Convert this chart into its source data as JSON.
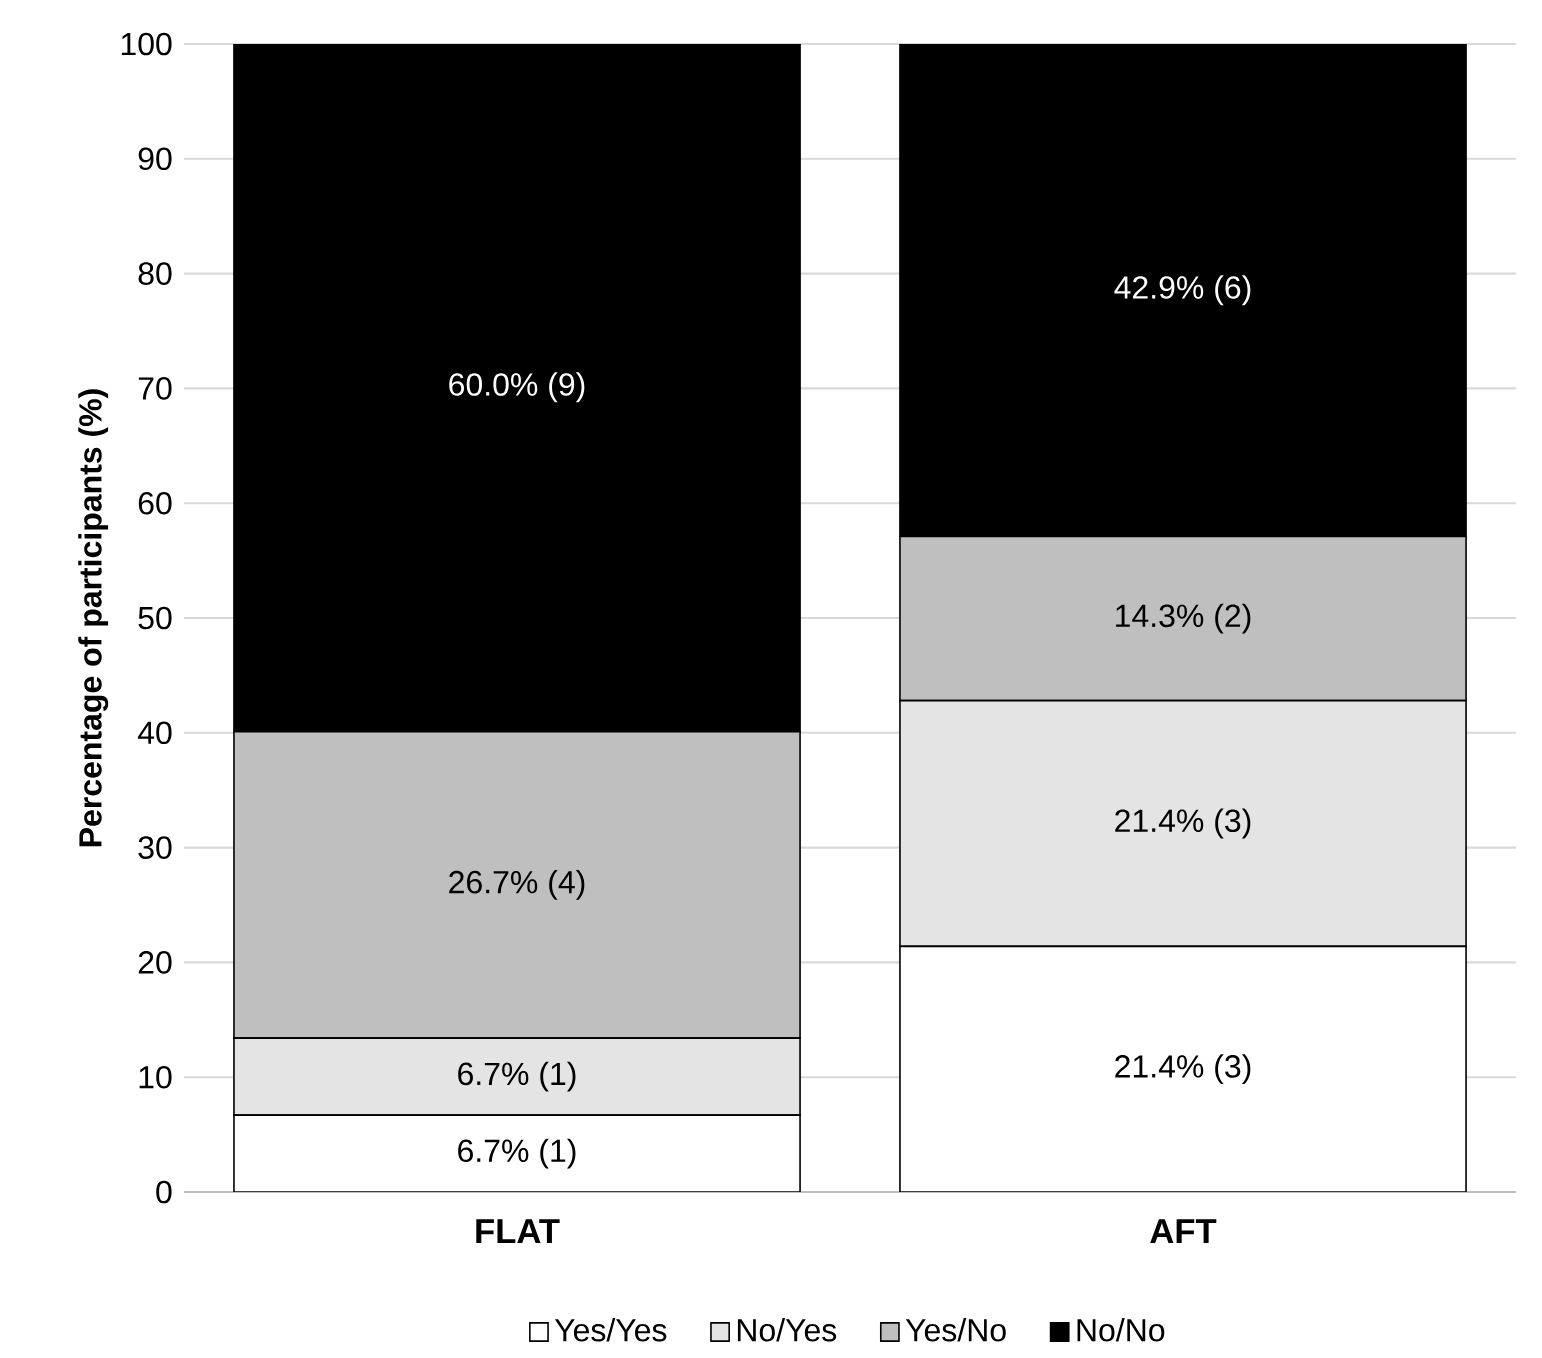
{
  "chart_data": {
    "type": "bar",
    "stacked": true,
    "ylabel": "Percentage of participants (%)",
    "categories": [
      "FLAT",
      "AFT"
    ],
    "series": [
      {
        "name": "Yes/Yes",
        "color": "#ffffff",
        "values": [
          6.7,
          21.4
        ],
        "value_labels": [
          "6.7% (1)",
          "21.4% (3)"
        ]
      },
      {
        "name": "No/Yes",
        "color": "#e4e4e4",
        "values": [
          6.7,
          21.4
        ],
        "value_labels": [
          "6.7% (1)",
          "21.4% (3)"
        ]
      },
      {
        "name": "Yes/No",
        "color": "#bfbfbf",
        "values": [
          26.7,
          14.3
        ],
        "value_labels": [
          "26.7% (4)",
          "14.3% (2)"
        ]
      },
      {
        "name": "No/No",
        "color": "#000000",
        "values": [
          60.0,
          42.9
        ],
        "value_labels": [
          "60.0% (9)",
          "42.9% (6)"
        ]
      }
    ],
    "ylim": [
      0,
      100
    ],
    "yticks": [
      0,
      10,
      20,
      30,
      40,
      50,
      60,
      70,
      80,
      90,
      100
    ],
    "grid": "y",
    "legend": "bottom"
  }
}
